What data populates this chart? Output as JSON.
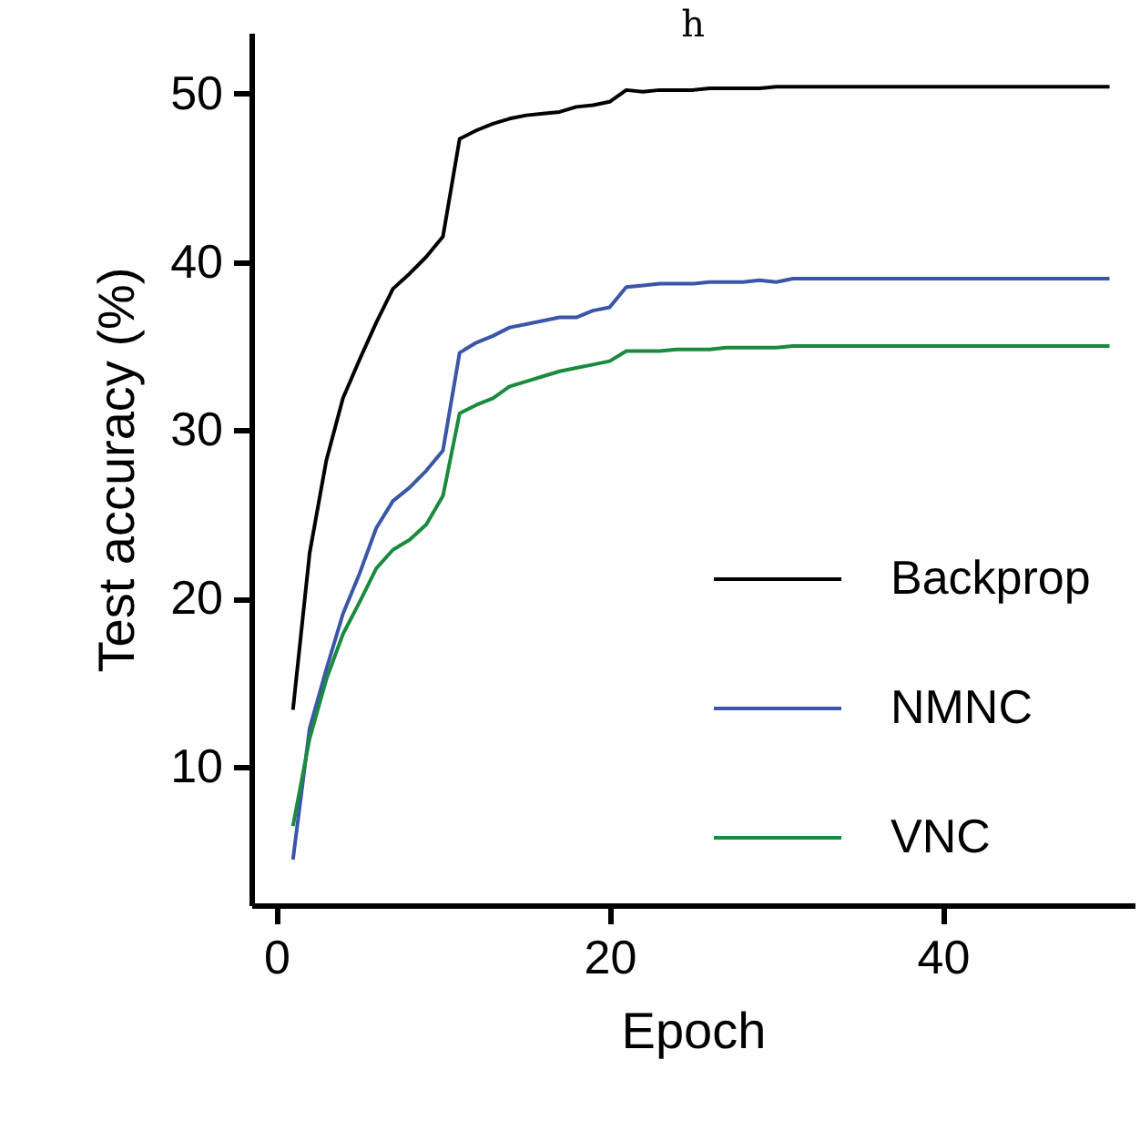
{
  "chart_data": {
    "type": "line",
    "title": "h",
    "xlabel": "Epoch",
    "ylabel": "Test accuracy (%)",
    "x": [
      1,
      2,
      3,
      4,
      5,
      6,
      7,
      8,
      9,
      10,
      11,
      12,
      13,
      14,
      15,
      16,
      17,
      18,
      19,
      20,
      21,
      22,
      23,
      24,
      25,
      26,
      27,
      28,
      29,
      30,
      31,
      32,
      33,
      34,
      35,
      36,
      37,
      38,
      39,
      40,
      41,
      42,
      43,
      44,
      45,
      46,
      47,
      48,
      49,
      50
    ],
    "series": [
      {
        "name": "Backprop",
        "color": "#000000",
        "values": [
          13.4,
          22.7,
          28.2,
          31.9,
          34.2,
          36.4,
          38.4,
          39.3,
          40.3,
          41.5,
          47.3,
          47.8,
          48.2,
          48.5,
          48.7,
          48.8,
          48.9,
          49.2,
          49.3,
          49.5,
          50.2,
          50.1,
          50.2,
          50.2,
          50.2,
          50.3,
          50.3,
          50.3,
          50.3,
          50.4,
          50.4,
          50.4,
          50.4,
          50.4,
          50.4,
          50.4,
          50.4,
          50.4,
          50.4,
          50.4,
          50.4,
          50.4,
          50.4,
          50.4,
          50.4,
          50.4,
          50.4,
          50.4,
          50.4,
          50.4
        ]
      },
      {
        "name": "NMNC",
        "color": "#3a56a8",
        "values": [
          4.5,
          12.3,
          15.8,
          19.1,
          21.5,
          24.2,
          25.8,
          26.6,
          27.6,
          28.8,
          34.6,
          35.2,
          35.6,
          36.1,
          36.3,
          36.5,
          36.7,
          36.7,
          37.1,
          37.3,
          38.5,
          38.6,
          38.7,
          38.7,
          38.7,
          38.8,
          38.8,
          38.8,
          38.9,
          38.8,
          39.0,
          39.0,
          39.0,
          39.0,
          39.0,
          39.0,
          39.0,
          39.0,
          39.0,
          39.0,
          39.0,
          39.0,
          39.0,
          39.0,
          39.0,
          39.0,
          39.0,
          39.0,
          39.0,
          39.0
        ]
      },
      {
        "name": "VNC",
        "color": "#1a8a3e",
        "values": [
          6.5,
          11.7,
          15.2,
          17.9,
          19.8,
          21.8,
          22.9,
          23.5,
          24.4,
          26.1,
          31.0,
          31.5,
          31.9,
          32.6,
          32.9,
          33.2,
          33.5,
          33.7,
          33.9,
          34.1,
          34.7,
          34.7,
          34.7,
          34.8,
          34.8,
          34.8,
          34.9,
          34.9,
          34.9,
          34.9,
          35.0,
          35.0,
          35.0,
          35.0,
          35.0,
          35.0,
          35.0,
          35.0,
          35.0,
          35.0,
          35.0,
          35.0,
          35.0,
          35.0,
          35.0,
          35.0,
          35.0,
          35.0,
          35.0,
          35.0
        ]
      }
    ],
    "xlim": [
      -1.5,
      51.5
    ],
    "xticks": [
      0,
      20,
      40
    ],
    "ylim": [
      1.8,
      53.6
    ],
    "yticks": [
      10,
      20,
      30,
      40,
      50
    ],
    "grid": false,
    "legend": "bottom right",
    "marker": "none",
    "line_style": "solid"
  }
}
